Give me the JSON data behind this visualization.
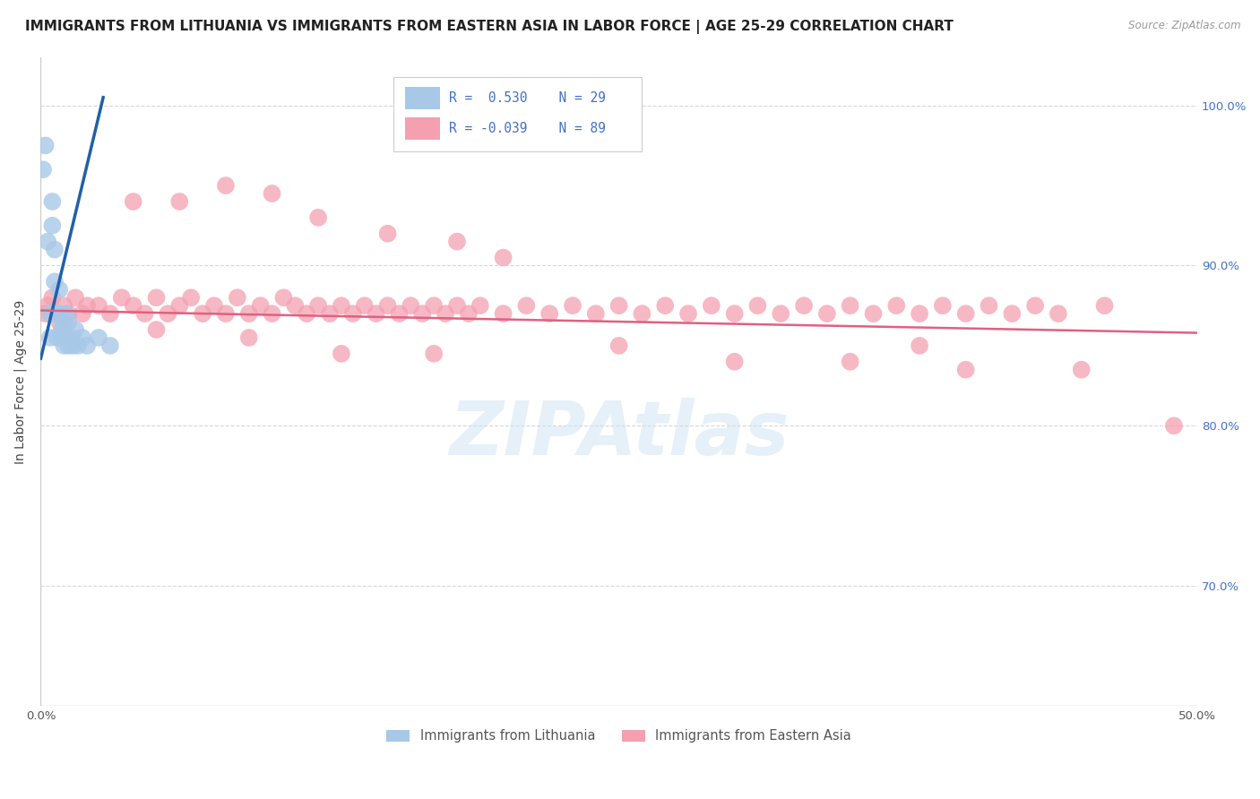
{
  "title": "IMMIGRANTS FROM LITHUANIA VS IMMIGRANTS FROM EASTERN ASIA IN LABOR FORCE | AGE 25-29 CORRELATION CHART",
  "source": "Source: ZipAtlas.com",
  "ylabel": "In Labor Force | Age 25-29",
  "xlim": [
    0.0,
    0.5
  ],
  "ylim": [
    0.625,
    1.03
  ],
  "xticks": [
    0.0,
    0.05,
    0.1,
    0.15,
    0.2,
    0.25,
    0.3,
    0.35,
    0.4,
    0.45,
    0.5
  ],
  "ytick_vals": [
    0.7,
    0.8,
    0.9,
    1.0
  ],
  "ytick_labels": [
    "70.0%",
    "80.0%",
    "90.0%",
    "100.0%"
  ],
  "legend_r_blue": "R =  0.530",
  "legend_n_blue": "N = 29",
  "legend_r_pink": "R = -0.039",
  "legend_n_pink": "N = 89",
  "blue_color": "#a8c8e8",
  "pink_color": "#f4a0b0",
  "blue_line_color": "#2060a8",
  "pink_line_color": "#e06080",
  "legend1_label": "Immigrants from Lithuania",
  "legend2_label": "Immigrants from Eastern Asia",
  "blue_scatter_x": [
    0.001,
    0.002,
    0.003,
    0.004,
    0.004,
    0.005,
    0.005,
    0.006,
    0.006,
    0.007,
    0.007,
    0.008,
    0.008,
    0.009,
    0.009,
    0.01,
    0.01,
    0.011,
    0.011,
    0.012,
    0.012,
    0.013,
    0.014,
    0.015,
    0.016,
    0.018,
    0.02,
    0.025,
    0.03
  ],
  "blue_scatter_y": [
    0.96,
    0.975,
    0.915,
    0.87,
    0.855,
    0.94,
    0.925,
    0.91,
    0.89,
    0.87,
    0.855,
    0.885,
    0.87,
    0.86,
    0.855,
    0.865,
    0.85,
    0.87,
    0.855,
    0.865,
    0.85,
    0.855,
    0.85,
    0.86,
    0.85,
    0.855,
    0.85,
    0.855,
    0.85
  ],
  "pink_scatter_x": [
    0.002,
    0.003,
    0.005,
    0.007,
    0.008,
    0.01,
    0.012,
    0.015,
    0.018,
    0.02,
    0.025,
    0.03,
    0.035,
    0.04,
    0.045,
    0.05,
    0.055,
    0.06,
    0.065,
    0.07,
    0.075,
    0.08,
    0.085,
    0.09,
    0.095,
    0.1,
    0.105,
    0.11,
    0.115,
    0.12,
    0.125,
    0.13,
    0.135,
    0.14,
    0.145,
    0.15,
    0.155,
    0.16,
    0.165,
    0.17,
    0.175,
    0.18,
    0.185,
    0.19,
    0.2,
    0.21,
    0.22,
    0.23,
    0.24,
    0.25,
    0.26,
    0.27,
    0.28,
    0.29,
    0.3,
    0.31,
    0.32,
    0.33,
    0.34,
    0.35,
    0.36,
    0.37,
    0.38,
    0.39,
    0.4,
    0.41,
    0.42,
    0.43,
    0.44,
    0.46,
    0.04,
    0.06,
    0.08,
    0.1,
    0.12,
    0.15,
    0.18,
    0.2,
    0.25,
    0.3,
    0.35,
    0.4,
    0.45,
    0.49,
    0.05,
    0.09,
    0.13,
    0.17,
    0.38
  ],
  "pink_scatter_y": [
    0.87,
    0.875,
    0.88,
    0.87,
    0.865,
    0.875,
    0.87,
    0.88,
    0.87,
    0.875,
    0.875,
    0.87,
    0.88,
    0.875,
    0.87,
    0.88,
    0.87,
    0.875,
    0.88,
    0.87,
    0.875,
    0.87,
    0.88,
    0.87,
    0.875,
    0.87,
    0.88,
    0.875,
    0.87,
    0.875,
    0.87,
    0.875,
    0.87,
    0.875,
    0.87,
    0.875,
    0.87,
    0.875,
    0.87,
    0.875,
    0.87,
    0.875,
    0.87,
    0.875,
    0.87,
    0.875,
    0.87,
    0.875,
    0.87,
    0.875,
    0.87,
    0.875,
    0.87,
    0.875,
    0.87,
    0.875,
    0.87,
    0.875,
    0.87,
    0.875,
    0.87,
    0.875,
    0.87,
    0.875,
    0.87,
    0.875,
    0.87,
    0.875,
    0.87,
    0.875,
    0.94,
    0.94,
    0.95,
    0.945,
    0.93,
    0.92,
    0.915,
    0.905,
    0.85,
    0.84,
    0.84,
    0.835,
    0.835,
    0.8,
    0.86,
    0.855,
    0.845,
    0.845,
    0.85
  ],
  "blue_line_x": [
    0.0,
    0.027
  ],
  "blue_line_y": [
    0.842,
    1.005
  ],
  "pink_line_x": [
    0.0,
    0.5
  ],
  "pink_line_y": [
    0.872,
    0.858
  ],
  "grid_color": "#d8d8d8",
  "title_fontsize": 11,
  "axis_label_fontsize": 10,
  "tick_fontsize": 9.5
}
